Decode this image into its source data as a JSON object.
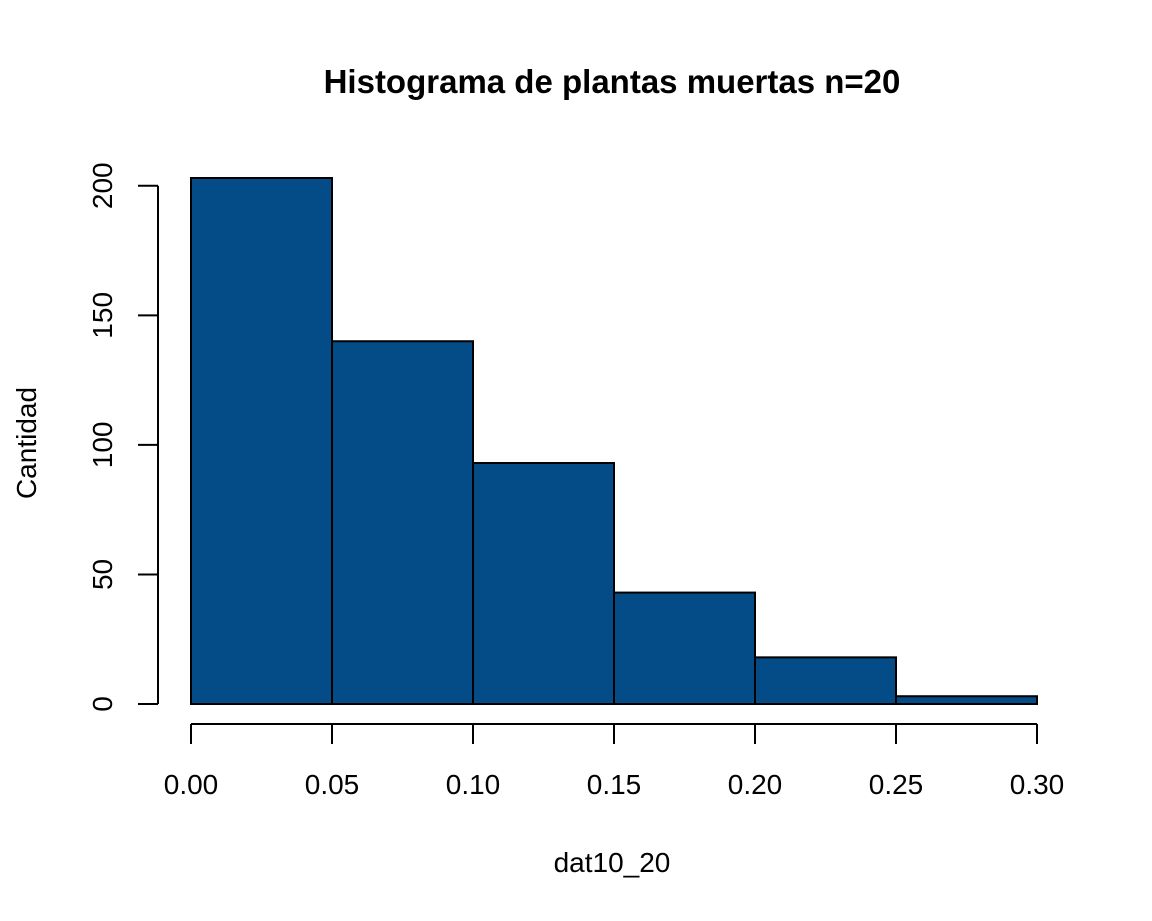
{
  "chart_data": {
    "type": "bar",
    "title": "Histograma de plantas muertas n=20",
    "xlabel": "dat10_20",
    "ylabel": "Cantidad",
    "bins": [
      {
        "start": 0.0,
        "end": 0.05,
        "count": 203
      },
      {
        "start": 0.05,
        "end": 0.1,
        "count": 140
      },
      {
        "start": 0.1,
        "end": 0.15,
        "count": 93
      },
      {
        "start": 0.15,
        "end": 0.2,
        "count": 43
      },
      {
        "start": 0.2,
        "end": 0.25,
        "count": 18
      },
      {
        "start": 0.25,
        "end": 0.3,
        "count": 3
      }
    ],
    "xlim": [
      0.0,
      0.3
    ],
    "ylim": [
      0,
      203
    ],
    "x_ticks": [
      0.0,
      0.05,
      0.1,
      0.15,
      0.2,
      0.25,
      0.3
    ],
    "x_tick_labels": [
      "0.00",
      "0.05",
      "0.10",
      "0.15",
      "0.20",
      "0.25",
      "0.30"
    ],
    "y_ticks": [
      0,
      50,
      100,
      150,
      200
    ],
    "y_tick_labels": [
      "0",
      "50",
      "100",
      "150",
      "200"
    ],
    "bar_color": "#044c87",
    "grid": false
  }
}
